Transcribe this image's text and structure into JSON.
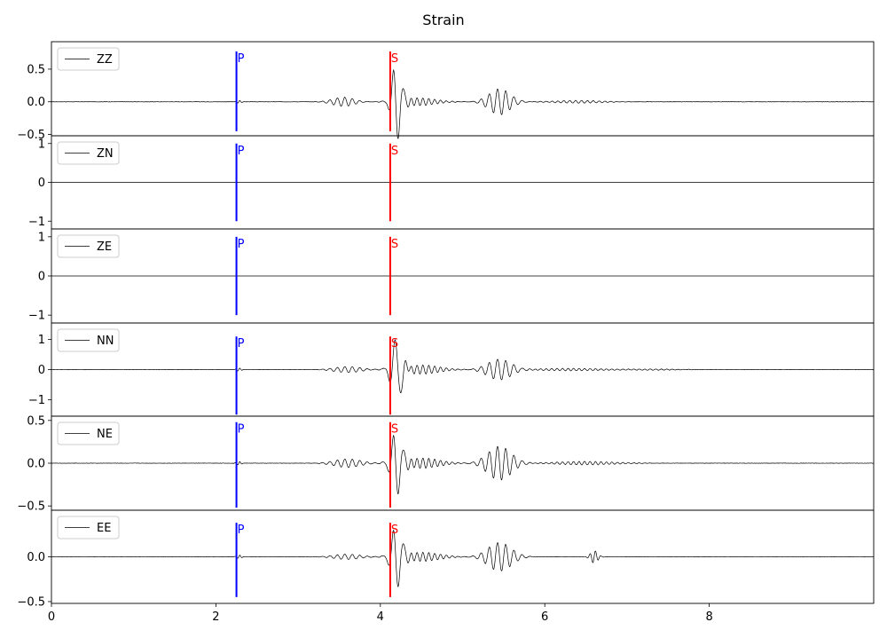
{
  "chart_data": {
    "type": "line",
    "title": "Strain",
    "xlim": [
      0,
      10
    ],
    "x_ticks": [
      0,
      2,
      4,
      6,
      8
    ],
    "x_tick_labels": [
      "0",
      "2",
      "4",
      "6",
      "8"
    ],
    "grid": false,
    "legend_placement": "upper left",
    "colors": {
      "trace": "#000000",
      "p_marker": "#0000ff",
      "s_marker": "#ff0000"
    },
    "markers": [
      {
        "label": "P",
        "x": 2.25,
        "color": "#0000ff"
      },
      {
        "label": "S",
        "x": 4.12,
        "color": "#ff0000"
      }
    ],
    "panels": [
      {
        "name": "ZZ",
        "ylim": [
          -0.52,
          0.92
        ],
        "y_ticks": [
          -0.5,
          0.0,
          0.5
        ],
        "y_tick_labels": [
          "−0.5",
          "0.0",
          "0.5"
        ],
        "marker_range": [
          -0.45,
          0.77
        ],
        "bursts": [
          {
            "t": 2.28,
            "a": 0.02,
            "w": 0.04,
            "f": 18
          },
          {
            "t": 3.55,
            "a": 0.07,
            "w": 0.18,
            "f": 11
          },
          {
            "t": 4.2,
            "a": 0.6,
            "w": 0.08,
            "f": 8
          },
          {
            "t": 4.45,
            "a": 0.06,
            "w": 0.3,
            "f": 14
          },
          {
            "t": 5.45,
            "a": 0.2,
            "w": 0.18,
            "f": 10
          },
          {
            "t": 6.4,
            "a": 0.02,
            "w": 0.4,
            "f": 14
          }
        ]
      },
      {
        "name": "ZN",
        "ylim": [
          -1.2,
          1.2
        ],
        "y_ticks": [
          -1,
          0,
          1
        ],
        "y_tick_labels": [
          "−1",
          "0",
          "1"
        ],
        "marker_range": [
          -1.0,
          1.0
        ],
        "bursts": []
      },
      {
        "name": "ZE",
        "ylim": [
          -1.2,
          1.2
        ],
        "y_ticks": [
          -1,
          0,
          1
        ],
        "y_tick_labels": [
          "−1",
          "0",
          "1"
        ],
        "marker_range": [
          -1.0,
          1.0
        ],
        "bursts": []
      },
      {
        "name": "NN",
        "ylim": [
          -1.55,
          1.55
        ],
        "y_ticks": [
          -1,
          0,
          1
        ],
        "y_tick_labels": [
          "−1",
          "0",
          "1"
        ],
        "marker_range": [
          -1.5,
          1.1
        ],
        "bursts": [
          {
            "t": 2.28,
            "a": 0.05,
            "w": 0.04,
            "f": 18
          },
          {
            "t": 3.6,
            "a": 0.1,
            "w": 0.22,
            "f": 11
          },
          {
            "t": 4.2,
            "a": 1.05,
            "w": 0.09,
            "f": 7
          },
          {
            "t": 4.5,
            "a": 0.15,
            "w": 0.3,
            "f": 14
          },
          {
            "t": 5.45,
            "a": 0.35,
            "w": 0.2,
            "f": 10
          },
          {
            "t": 6.3,
            "a": 0.04,
            "w": 0.5,
            "f": 15
          },
          {
            "t": 7.3,
            "a": 0.02,
            "w": 0.4,
            "f": 15
          }
        ]
      },
      {
        "name": "NE",
        "ylim": [
          -0.55,
          0.55
        ],
        "y_ticks": [
          -0.5,
          0.0,
          0.5
        ],
        "y_tick_labels": [
          "−0.5",
          "0.0",
          "0.5"
        ],
        "marker_range": [
          -0.52,
          0.48
        ],
        "bursts": [
          {
            "t": 2.28,
            "a": 0.02,
            "w": 0.04,
            "f": 18
          },
          {
            "t": 3.6,
            "a": 0.05,
            "w": 0.22,
            "f": 11
          },
          {
            "t": 4.2,
            "a": 0.38,
            "w": 0.09,
            "f": 8
          },
          {
            "t": 4.5,
            "a": 0.06,
            "w": 0.3,
            "f": 14
          },
          {
            "t": 5.45,
            "a": 0.2,
            "w": 0.2,
            "f": 10
          },
          {
            "t": 6.5,
            "a": 0.02,
            "w": 0.5,
            "f": 15
          }
        ]
      },
      {
        "name": "EE",
        "ylim": [
          -0.52,
          0.52
        ],
        "y_ticks": [
          -0.5,
          0.0
        ],
        "y_tick_labels": [
          "−0.5",
          "0.0"
        ],
        "marker_range": [
          -0.45,
          0.38
        ],
        "bursts": [
          {
            "t": 2.28,
            "a": 0.02,
            "w": 0.04,
            "f": 18
          },
          {
            "t": 3.6,
            "a": 0.03,
            "w": 0.22,
            "f": 11
          },
          {
            "t": 4.2,
            "a": 0.35,
            "w": 0.09,
            "f": 8
          },
          {
            "t": 4.5,
            "a": 0.05,
            "w": 0.3,
            "f": 14
          },
          {
            "t": 5.45,
            "a": 0.16,
            "w": 0.2,
            "f": 10
          },
          {
            "t": 6.6,
            "a": 0.07,
            "w": 0.06,
            "f": 15
          }
        ]
      }
    ]
  }
}
